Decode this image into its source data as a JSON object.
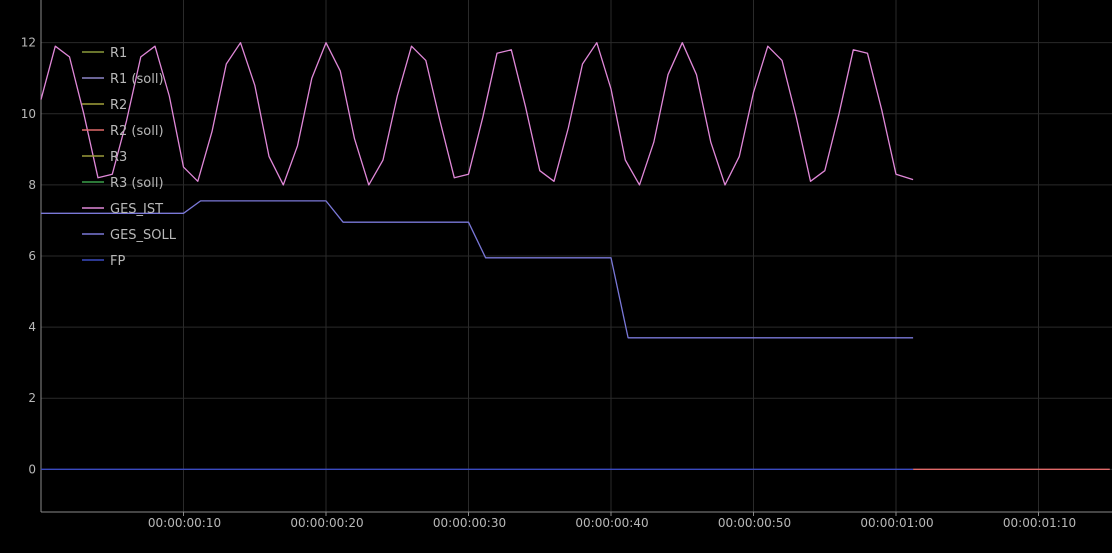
{
  "chart_data": {
    "type": "line",
    "xlabel": "",
    "ylabel": "",
    "xlim_seconds": [
      0,
      75
    ],
    "ylim": [
      -1.2,
      13.2
    ],
    "yticks": [
      0,
      2,
      4,
      6,
      8,
      10,
      12
    ],
    "yticklabels": [
      "0",
      "2",
      "4",
      "6",
      "8",
      "10",
      "12"
    ],
    "xticks_seconds": [
      10,
      20,
      30,
      40,
      50,
      60,
      70
    ],
    "xticklabels": [
      "00:00:00:10",
      "00:00:00:20",
      "00:00:00:30",
      "00:00:00:40",
      "00:00:00:50",
      "00:00:01:00",
      "00:00:01:10"
    ],
    "grid": true,
    "legend_position": "top-left",
    "series": [
      {
        "name": "R1",
        "color": "#8a9a3a",
        "x": [],
        "y": []
      },
      {
        "name": "R1 (soll)",
        "color": "#8e86c8",
        "x": [],
        "y": []
      },
      {
        "name": "R2",
        "color": "#a3a13a",
        "x": [],
        "y": []
      },
      {
        "name": "R2 (soll)",
        "color": "#e06a6a",
        "x": [
          61.2,
          75
        ],
        "y": [
          0,
          0
        ]
      },
      {
        "name": "R3",
        "color": "#9a9a3a",
        "x": [],
        "y": []
      },
      {
        "name": "R3 (soll)",
        "color": "#3aa04a",
        "x": [],
        "y": []
      },
      {
        "name": "GES_IST",
        "color": "#e088d8",
        "x": [
          0,
          1,
          2,
          3,
          4,
          5,
          6,
          7,
          8,
          9,
          10,
          11,
          12,
          13,
          14,
          15,
          16,
          17,
          18,
          19,
          20,
          21,
          22,
          23,
          24,
          25,
          26,
          27,
          28,
          29,
          30,
          31,
          32,
          33,
          34,
          35,
          36,
          37,
          38,
          39,
          40,
          41,
          42,
          43,
          44,
          45,
          46,
          47,
          48,
          49,
          50,
          51,
          52,
          53,
          54,
          55,
          56,
          57,
          58,
          59,
          60,
          61.2
        ],
        "y": [
          10.4,
          11.9,
          11.6,
          10.0,
          8.2,
          8.3,
          9.8,
          11.6,
          11.9,
          10.5,
          8.5,
          8.1,
          9.5,
          11.4,
          12.0,
          10.8,
          8.8,
          8.0,
          9.1,
          11.0,
          12.0,
          11.2,
          9.3,
          8.0,
          8.7,
          10.5,
          11.9,
          11.5,
          9.8,
          8.2,
          8.3,
          9.9,
          11.7,
          11.8,
          10.2,
          8.4,
          8.1,
          9.6,
          11.4,
          12.0,
          10.7,
          8.7,
          8.0,
          9.2,
          11.1,
          12.0,
          11.1,
          9.2,
          8.0,
          8.8,
          10.6,
          11.9,
          11.5,
          9.9,
          8.1,
          8.4,
          10.0,
          11.8,
          11.7,
          10.1,
          8.3,
          8.15
        ]
      },
      {
        "name": "GES_SOLL",
        "color": "#7a78d8",
        "x": [
          0,
          10,
          11.2,
          20,
          21.2,
          30,
          31.2,
          40,
          41.2,
          61.2
        ],
        "y": [
          7.2,
          7.2,
          7.55,
          7.55,
          6.95,
          6.95,
          5.95,
          5.95,
          3.7,
          3.7
        ]
      },
      {
        "name": "FP",
        "color": "#3a4ac0",
        "x": [
          0,
          61.2
        ],
        "y": [
          0,
          0
        ]
      }
    ]
  }
}
